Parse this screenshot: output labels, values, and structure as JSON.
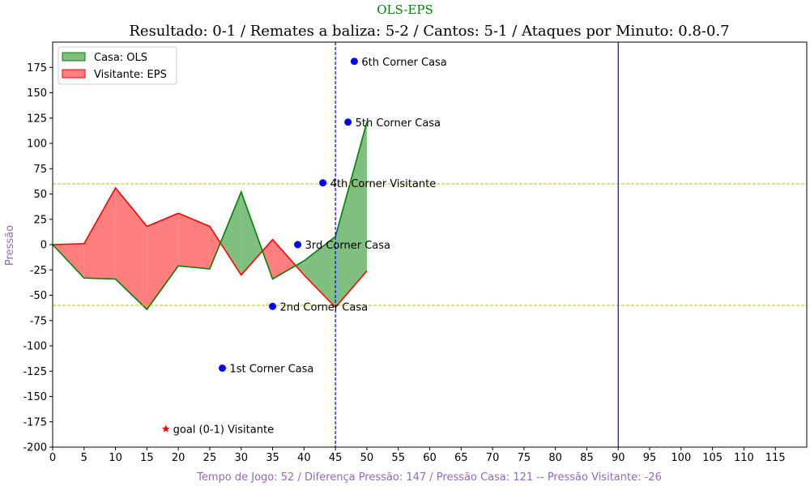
{
  "chart_data": {
    "type": "area",
    "suptitle": "OLS-EPS",
    "title": "Resultado: 0-1 / Remates a baliza: 5-2 / Cantos: 5-1 / Ataques por Minuto: 0.8-0.7",
    "xlabel": "Tempo de Jogo: 52 / Diferença Pressão: 147 / Pressão Casa: 121 -- Pressão Visitante: -26",
    "ylabel": "Pressão",
    "xlim": [
      0,
      120
    ],
    "ylim": [
      -200,
      200
    ],
    "xticks": [
      0,
      5,
      10,
      15,
      20,
      25,
      30,
      35,
      40,
      45,
      50,
      55,
      60,
      65,
      70,
      75,
      80,
      85,
      90,
      95,
      100,
      105,
      110,
      115
    ],
    "yticks": [
      -200,
      -175,
      -150,
      -125,
      -100,
      -75,
      -50,
      -25,
      0,
      25,
      50,
      75,
      100,
      125,
      150,
      175
    ],
    "grid": false,
    "legend_position": "upper-left",
    "colors": {
      "home": "#008000",
      "away": "#ff0000",
      "home_fill": "#7fbf7f",
      "away_fill": "#ff7f7f",
      "threshold": "#bfbf00",
      "vline": "#0000ff",
      "marker": "#0000ff",
      "goal": "#ff0000",
      "suptitle": "#008000",
      "axis_label": "#9467bd"
    },
    "series": [
      {
        "name": "Casa: OLS",
        "x": [
          0,
          5,
          10,
          15,
          20,
          25,
          30,
          35,
          40,
          45,
          50
        ],
        "values": [
          0,
          -33,
          -34,
          -64,
          -21,
          -24,
          52,
          -34,
          -16,
          8,
          121
        ]
      },
      {
        "name": "Visitante: EPS",
        "x": [
          0,
          5,
          10,
          15,
          20,
          25,
          30,
          35,
          40,
          45,
          50
        ],
        "values": [
          0,
          1,
          56,
          18,
          31,
          18,
          -30,
          5,
          -30,
          -62,
          -26
        ]
      }
    ],
    "hlines": [
      60,
      -60
    ],
    "vlines": [
      {
        "x": 45,
        "style": "dashed"
      },
      {
        "x": 90,
        "style": "solid"
      }
    ],
    "annotations": [
      {
        "x": 27,
        "y": -122,
        "label": "1st Corner Casa",
        "marker": "circle"
      },
      {
        "x": 35,
        "y": -61,
        "label": "2nd Corner Casa",
        "marker": "circle"
      },
      {
        "x": 39,
        "y": 0,
        "label": "3rd Corner Casa",
        "marker": "circle"
      },
      {
        "x": 43,
        "y": 61,
        "label": "4th Corner Visitante",
        "marker": "circle"
      },
      {
        "x": 47,
        "y": 121,
        "label": "5th Corner Casa",
        "marker": "circle"
      },
      {
        "x": 48,
        "y": 181,
        "label": "6th Corner Casa",
        "marker": "circle"
      },
      {
        "x": 18,
        "y": -182,
        "label": "goal (0-1) Visitante",
        "marker": "star"
      }
    ]
  }
}
